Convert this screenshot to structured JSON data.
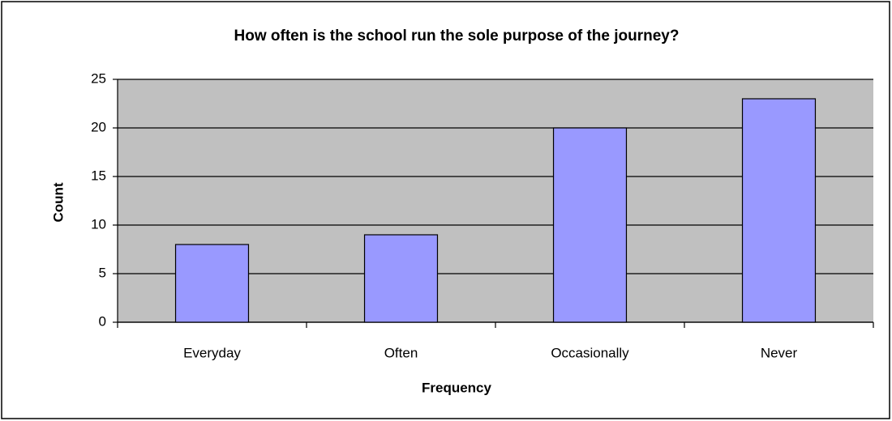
{
  "chart_data": {
    "type": "bar",
    "title": "How often is the school run the sole purpose of the journey?",
    "x_label": "Frequency",
    "y_label": "Count",
    "categories": [
      "Everyday",
      "Often",
      "Occasionally",
      "Never"
    ],
    "values": [
      8,
      9,
      20,
      23
    ],
    "color": "#9999ff",
    "ylim": [
      0,
      25
    ],
    "yticks": [
      0,
      5,
      10,
      15,
      20,
      25
    ],
    "grid": true
  }
}
